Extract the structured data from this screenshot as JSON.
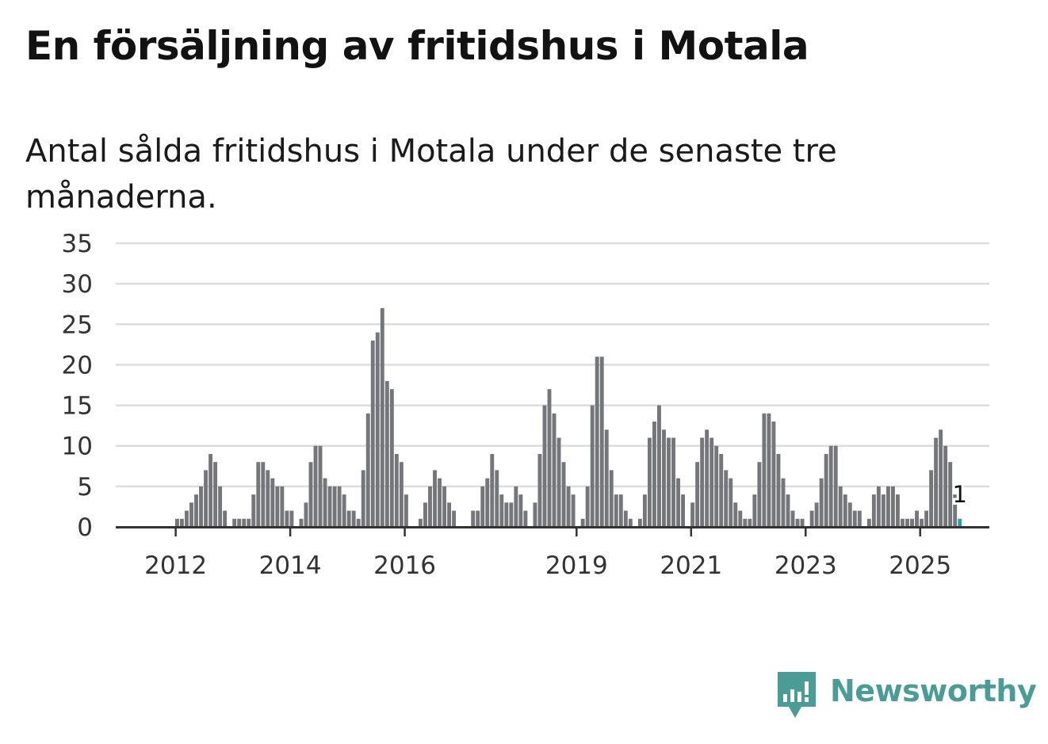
{
  "title": "En försäljning av fritidshus i Motala",
  "subtitle": "Antal sålda fritidshus i Motala under de senaste tre månaderna.",
  "brand": {
    "name": "Newsworthy",
    "icon": "newsworthy-logo-icon",
    "color": "#4a9d97"
  },
  "colors": {
    "bar": "#75767b",
    "highlight": "#2aa3a0",
    "grid": "#dddddd",
    "axis": "#333333"
  },
  "chart_data": {
    "type": "bar",
    "ylim": [
      0,
      35
    ],
    "yticks": [
      0,
      5,
      10,
      15,
      20,
      25,
      30,
      35
    ],
    "xtick_labels": [
      "2012",
      "2014",
      "2016",
      "2019",
      "2021",
      "2023",
      "2025"
    ],
    "xtick_months": [
      "2012-01",
      "2014-01",
      "2016-01",
      "2019-01",
      "2021-01",
      "2023-01",
      "2025-01"
    ],
    "grid": true,
    "start_month": "2011-01",
    "annotation": {
      "month": "2025-09",
      "label": "1"
    },
    "series": [
      {
        "values": [
          0,
          0,
          0,
          0,
          0,
          0,
          0,
          0,
          0,
          0,
          0,
          0,
          1,
          1,
          2,
          3,
          4,
          5,
          7,
          9,
          8,
          5,
          2,
          0,
          1,
          1,
          1,
          1,
          4,
          8,
          8,
          7,
          6,
          5,
          5,
          2,
          2,
          0,
          1,
          3,
          8,
          10,
          10,
          6,
          5,
          5,
          5,
          4,
          2,
          2,
          1,
          7,
          14,
          23,
          24,
          27,
          18,
          17,
          9,
          8,
          4,
          0,
          0,
          1,
          3,
          5,
          7,
          6,
          5,
          3,
          2,
          0,
          0,
          0,
          2,
          2,
          5,
          6,
          9,
          7,
          4,
          3,
          3,
          5,
          4,
          2,
          0,
          3,
          9,
          15,
          17,
          14,
          11,
          8,
          5,
          4,
          0,
          1,
          5,
          15,
          21,
          21,
          12,
          7,
          4,
          4,
          2,
          1,
          0,
          1,
          4,
          11,
          13,
          15,
          12,
          11,
          11,
          6,
          4,
          0,
          3,
          8,
          11,
          12,
          11,
          10,
          9,
          7,
          6,
          3,
          2,
          1,
          1,
          4,
          8,
          14,
          14,
          13,
          9,
          6,
          4,
          2,
          1,
          1,
          0,
          2,
          3,
          6,
          9,
          10,
          10,
          5,
          4,
          3,
          2,
          2,
          0,
          1,
          4,
          5,
          4,
          5,
          5,
          4,
          1,
          1,
          1,
          2,
          1,
          2,
          7,
          11,
          12,
          10,
          8,
          4,
          1
        ]
      }
    ]
  }
}
